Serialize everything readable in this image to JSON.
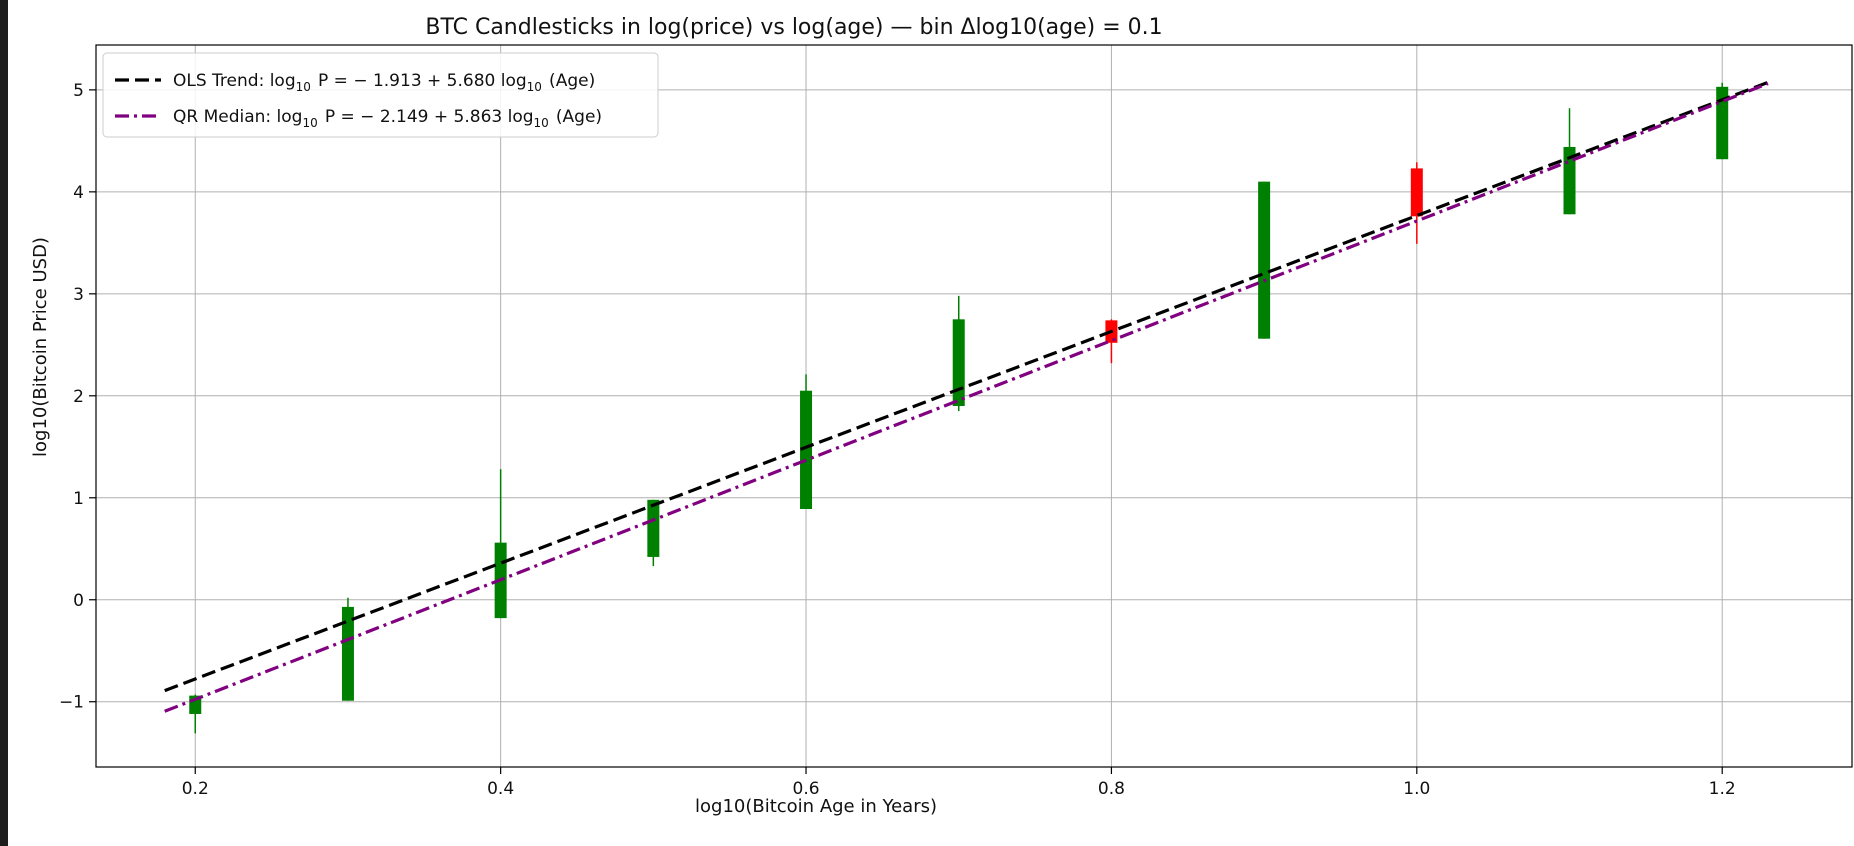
{
  "chart_data": {
    "type": "candlestick",
    "title": "BTC Candlesticks in log(price) vs log(age) — bin Δlog10(age) = 0.1",
    "xlabel": "log10(Bitcoin Age in Years)",
    "ylabel": "log10(Bitcoin Price USD)",
    "xlim": [
      0.135,
      1.285
    ],
    "ylim": [
      -1.64,
      5.44
    ],
    "xticks": [
      0.2,
      0.4,
      0.6,
      0.8,
      1.0,
      1.2
    ],
    "xtick_labels": [
      "0.2",
      "0.4",
      "0.6",
      "0.8",
      "1.0",
      "1.2"
    ],
    "yticks": [
      -1,
      0,
      1,
      2,
      3,
      4,
      5
    ],
    "ytick_labels": [
      "−1",
      "0",
      "1",
      "2",
      "3",
      "4",
      "5"
    ],
    "grid": true,
    "legend_position": "top-left",
    "candles": [
      {
        "x": 0.2,
        "open": -1.12,
        "close": -0.94,
        "high": -0.93,
        "low": -1.31,
        "direction": "up"
      },
      {
        "x": 0.3,
        "open": -0.99,
        "close": -0.07,
        "high": 0.02,
        "low": -0.99,
        "direction": "up"
      },
      {
        "x": 0.4,
        "open": -0.18,
        "close": 0.56,
        "high": 1.28,
        "low": -0.18,
        "direction": "up"
      },
      {
        "x": 0.5,
        "open": 0.42,
        "close": 0.98,
        "high": 0.98,
        "low": 0.33,
        "direction": "up"
      },
      {
        "x": 0.6,
        "open": 0.89,
        "close": 2.05,
        "high": 2.21,
        "low": 0.89,
        "direction": "up"
      },
      {
        "x": 0.7,
        "open": 1.9,
        "close": 2.75,
        "high": 2.98,
        "low": 1.85,
        "direction": "up"
      },
      {
        "x": 0.8,
        "open": 2.74,
        "close": 2.52,
        "high": 2.75,
        "low": 2.32,
        "direction": "down"
      },
      {
        "x": 0.9,
        "open": 2.56,
        "close": 4.1,
        "high": 4.1,
        "low": 2.56,
        "direction": "up"
      },
      {
        "x": 1.0,
        "open": 4.23,
        "close": 3.76,
        "high": 4.29,
        "low": 3.49,
        "direction": "down"
      },
      {
        "x": 1.1,
        "open": 3.78,
        "close": 4.44,
        "high": 4.82,
        "low": 3.78,
        "direction": "up"
      },
      {
        "x": 1.2,
        "open": 4.32,
        "close": 5.03,
        "high": 5.07,
        "low": 4.32,
        "direction": "up"
      }
    ],
    "lines": [
      {
        "name": "OLS Trend",
        "intercept": -1.913,
        "slope": 5.68,
        "x_range": [
          0.18,
          1.23
        ],
        "color": "#000000",
        "style": "dashed"
      },
      {
        "name": "QR Median",
        "intercept": -2.149,
        "slope": 5.863,
        "x_range": [
          0.18,
          1.23
        ],
        "color": "#800080",
        "style": "dashdot"
      }
    ],
    "legend": [
      {
        "prefix": "OLS Trend: log",
        "sub1": "10",
        "mid": "P = − 1.913 + 5.680 log",
        "sub2": "10",
        "suffix": "(Age)"
      },
      {
        "prefix": "QR Median: log",
        "sub1": "10",
        "mid": "P = − 2.149 + 5.863 log",
        "sub2": "10",
        "suffix": "(Age)"
      }
    ],
    "colors": {
      "up": "#008000",
      "down": "#ff0000",
      "grid": "#b0b0b0",
      "frame": "#000000"
    }
  }
}
